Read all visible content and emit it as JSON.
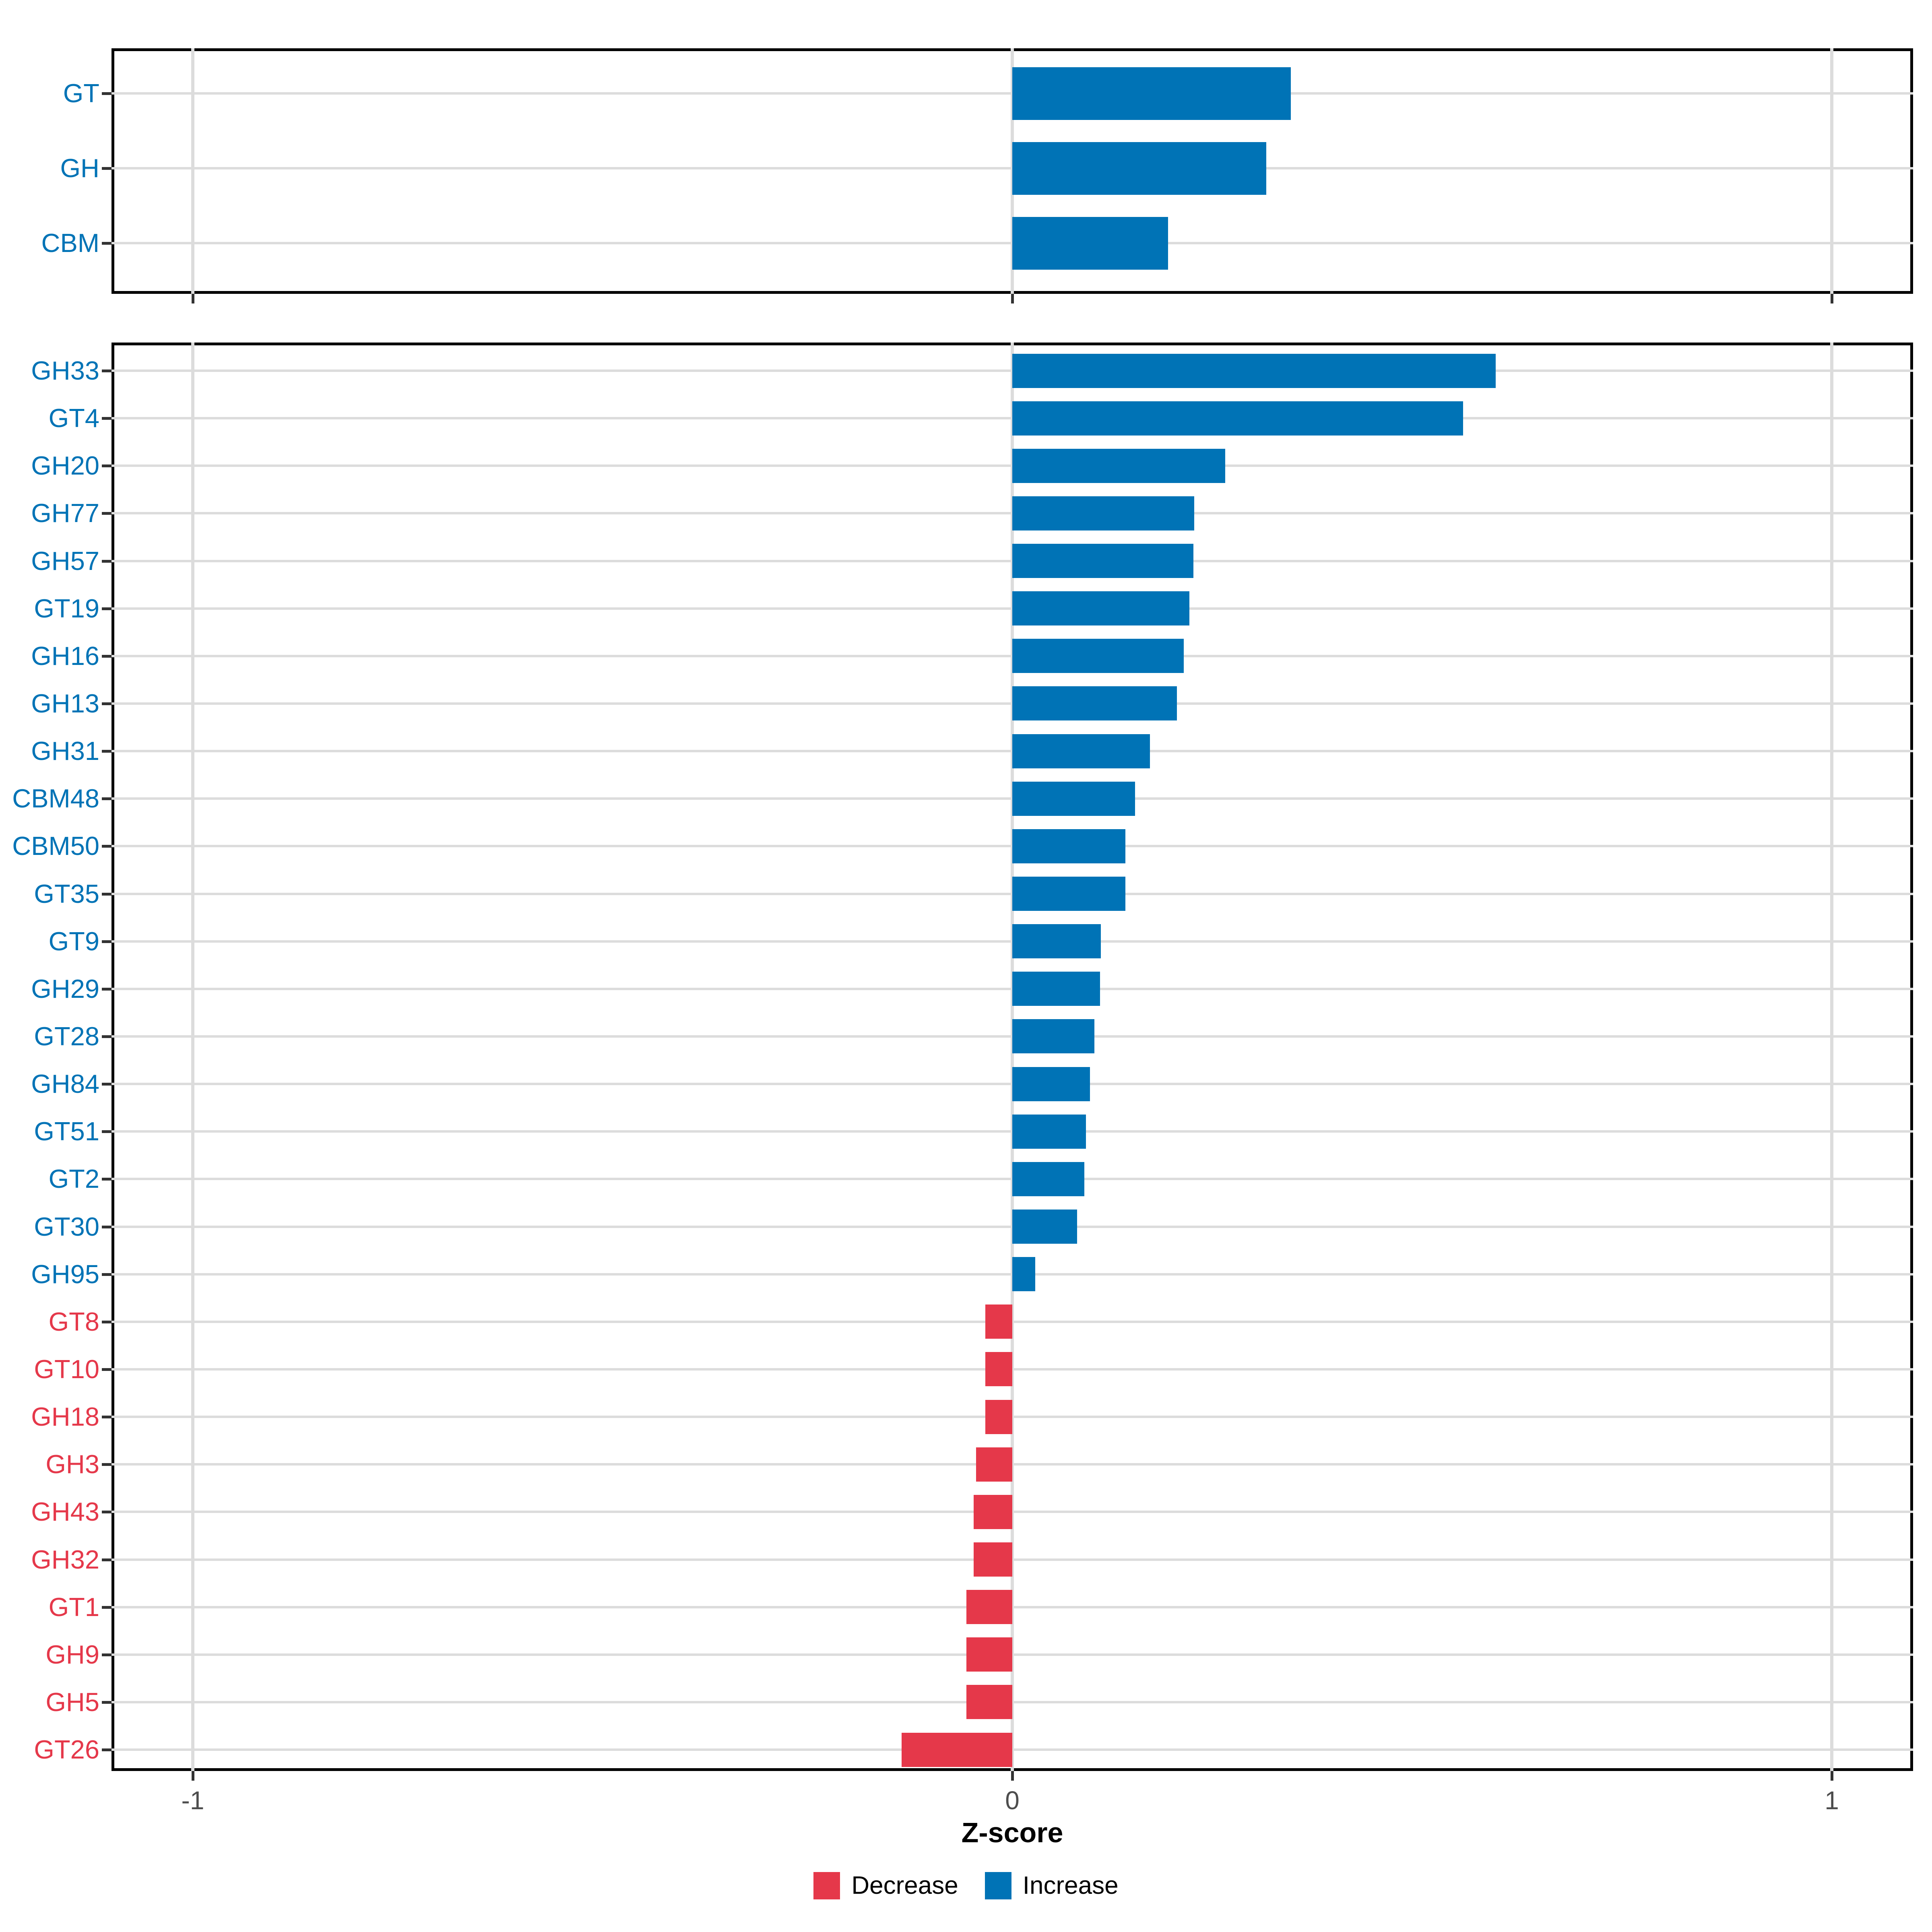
{
  "figure": {
    "background": "#ffffff"
  },
  "colors": {
    "increase": "#0073B6",
    "decrease": "#E5384A",
    "grid": "#DCDCDC",
    "panel_border": "#000000",
    "tick": "#333333",
    "tick_label": "#4D4D4D",
    "axis_title": "#000000"
  },
  "axis": {
    "title": "Z-score",
    "range": [
      -1.1,
      1.1
    ],
    "ticks": [
      {
        "label": "-1",
        "value": -1
      },
      {
        "label": "0",
        "value": 0
      },
      {
        "label": "1",
        "value": 1
      }
    ]
  },
  "legend": {
    "position": "bottom",
    "items": [
      {
        "label": "Decrease",
        "color_key": "decrease"
      },
      {
        "label": "Increase",
        "color_key": "increase"
      }
    ]
  },
  "chart_data": [
    {
      "type": "bar",
      "orientation": "horizontal",
      "panel": "classes",
      "xlabel": "Z-score",
      "xlim": [
        -1.1,
        1.1
      ],
      "grid": true,
      "legend_position": "bottom",
      "categories": [
        "GT",
        "GH",
        "CBM"
      ],
      "values": [
        0.34,
        0.31,
        0.19
      ]
    },
    {
      "type": "bar",
      "orientation": "horizontal",
      "panel": "families",
      "xlabel": "Z-score",
      "xlim": [
        -1.1,
        1.1
      ],
      "grid": true,
      "legend_position": "bottom",
      "categories": [
        "GH33",
        "GT4",
        "GH20",
        "GH77",
        "GH57",
        "GT19",
        "GH16",
        "GH13",
        "GH31",
        "CBM48",
        "CBM50",
        "GT35",
        "GT9",
        "GH29",
        "GT28",
        "GH84",
        "GT51",
        "GT2",
        "GT30",
        "GH95",
        "GT8",
        "GT10",
        "GH18",
        "GH3",
        "GH43",
        "GH32",
        "GT1",
        "GH9",
        "GH5",
        "GT26"
      ],
      "values": [
        0.59,
        0.55,
        0.26,
        0.222,
        0.221,
        0.216,
        0.209,
        0.201,
        0.168,
        0.15,
        0.138,
        0.138,
        0.108,
        0.107,
        0.1,
        0.095,
        0.09,
        0.088,
        0.079,
        0.028,
        -0.033,
        -0.033,
        -0.033,
        -0.044,
        -0.047,
        -0.047,
        -0.056,
        -0.056,
        -0.056,
        -0.135
      ]
    }
  ]
}
